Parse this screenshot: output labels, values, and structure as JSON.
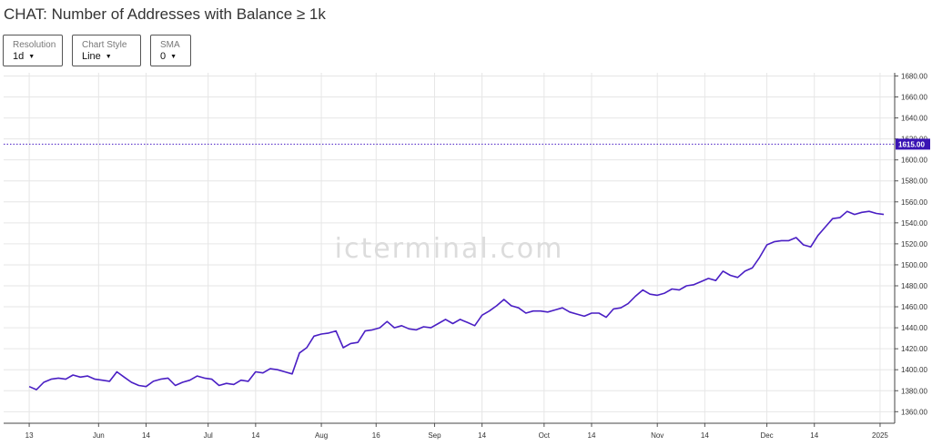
{
  "header": {
    "title": "CHAT: Number of Addresses with Balance ≥ 1k"
  },
  "controls": {
    "resolution": {
      "label": "Resolution",
      "value": "1d"
    },
    "chart_style": {
      "label": "Chart Style",
      "value": "Line"
    },
    "sma": {
      "label": "SMA",
      "value": "0"
    }
  },
  "watermark": "icterminal.com",
  "colors": {
    "line": "#4a1fc4",
    "last_value_bg": "#3a14b4",
    "grid": "#e6e6e6"
  },
  "chart_data": {
    "type": "line",
    "title": "CHAT: Number of Addresses with Balance ≥ 1k",
    "xlabel": "",
    "ylabel": "",
    "ylim": [
      1349,
      1683
    ],
    "xlim": [
      "2024-05-06",
      "2025-01-05"
    ],
    "y_ticks": [
      1360,
      1380,
      1400,
      1420,
      1440,
      1460,
      1480,
      1500,
      1520,
      1540,
      1560,
      1580,
      1600,
      1620,
      1640,
      1660,
      1680
    ],
    "y_tick_labels": [
      "1360.00",
      "1380.00",
      "1400.00",
      "1420.00",
      "1440.00",
      "1460.00",
      "1480.00",
      "1500.00",
      "1520.00",
      "1540.00",
      "1560.00",
      "1580.00",
      "1600.00",
      "1620.00",
      "1640.00",
      "1660.00",
      "1680.00"
    ],
    "x_ticks": [
      {
        "date": "2024-05-13",
        "label": "13"
      },
      {
        "date": "2024-06-01",
        "label": "Jun"
      },
      {
        "date": "2024-06-14",
        "label": "14"
      },
      {
        "date": "2024-07-01",
        "label": "Jul"
      },
      {
        "date": "2024-07-14",
        "label": "14"
      },
      {
        "date": "2024-08-01",
        "label": "Aug"
      },
      {
        "date": "2024-08-16",
        "label": "16"
      },
      {
        "date": "2024-09-01",
        "label": "Sep"
      },
      {
        "date": "2024-09-14",
        "label": "14"
      },
      {
        "date": "2024-10-01",
        "label": "Oct"
      },
      {
        "date": "2024-10-14",
        "label": "14"
      },
      {
        "date": "2024-11-01",
        "label": "Nov"
      },
      {
        "date": "2024-11-14",
        "label": "14"
      },
      {
        "date": "2024-12-01",
        "label": "Dec"
      },
      {
        "date": "2024-12-14",
        "label": "14"
      },
      {
        "date": "2025-01-01",
        "label": "2025"
      }
    ],
    "grid": true,
    "legend": "none",
    "last_value": 1615,
    "last_value_label": "1615.00",
    "series": [
      {
        "points": [
          [
            "2024-05-13",
            1384
          ],
          [
            "2024-05-15",
            1381
          ],
          [
            "2024-05-17",
            1388
          ],
          [
            "2024-05-19",
            1391
          ],
          [
            "2024-05-21",
            1392
          ],
          [
            "2024-05-23",
            1391
          ],
          [
            "2024-05-25",
            1395
          ],
          [
            "2024-05-27",
            1393
          ],
          [
            "2024-05-29",
            1394
          ],
          [
            "2024-05-31",
            1391
          ],
          [
            "2024-06-02",
            1390
          ],
          [
            "2024-06-04",
            1389
          ],
          [
            "2024-06-06",
            1398
          ],
          [
            "2024-06-08",
            1393
          ],
          [
            "2024-06-10",
            1388
          ],
          [
            "2024-06-12",
            1385
          ],
          [
            "2024-06-14",
            1384
          ],
          [
            "2024-06-16",
            1389
          ],
          [
            "2024-06-18",
            1391
          ],
          [
            "2024-06-20",
            1392
          ],
          [
            "2024-06-22",
            1385
          ],
          [
            "2024-06-24",
            1388
          ],
          [
            "2024-06-26",
            1390
          ],
          [
            "2024-06-28",
            1394
          ],
          [
            "2024-06-30",
            1392
          ],
          [
            "2024-07-02",
            1391
          ],
          [
            "2024-07-04",
            1385
          ],
          [
            "2024-07-06",
            1387
          ],
          [
            "2024-07-08",
            1386
          ],
          [
            "2024-07-10",
            1390
          ],
          [
            "2024-07-12",
            1389
          ],
          [
            "2024-07-14",
            1398
          ],
          [
            "2024-07-16",
            1397
          ],
          [
            "2024-07-18",
            1401
          ],
          [
            "2024-07-20",
            1400
          ],
          [
            "2024-07-22",
            1398
          ],
          [
            "2024-07-24",
            1396
          ],
          [
            "2024-07-26",
            1416
          ],
          [
            "2024-07-28",
            1421
          ],
          [
            "2024-07-30",
            1432
          ],
          [
            "2024-08-01",
            1434
          ],
          [
            "2024-08-03",
            1435
          ],
          [
            "2024-08-05",
            1437
          ],
          [
            "2024-08-07",
            1421
          ],
          [
            "2024-08-09",
            1425
          ],
          [
            "2024-08-11",
            1426
          ],
          [
            "2024-08-13",
            1437
          ],
          [
            "2024-08-15",
            1438
          ],
          [
            "2024-08-17",
            1440
          ],
          [
            "2024-08-19",
            1446
          ],
          [
            "2024-08-21",
            1440
          ],
          [
            "2024-08-23",
            1442
          ],
          [
            "2024-08-25",
            1439
          ],
          [
            "2024-08-27",
            1438
          ],
          [
            "2024-08-29",
            1441
          ],
          [
            "2024-08-31",
            1440
          ],
          [
            "2024-09-02",
            1444
          ],
          [
            "2024-09-04",
            1448
          ],
          [
            "2024-09-06",
            1444
          ],
          [
            "2024-09-08",
            1448
          ],
          [
            "2024-09-10",
            1445
          ],
          [
            "2024-09-12",
            1442
          ],
          [
            "2024-09-14",
            1452
          ],
          [
            "2024-09-16",
            1456
          ],
          [
            "2024-09-18",
            1461
          ],
          [
            "2024-09-20",
            1467
          ],
          [
            "2024-09-22",
            1461
          ],
          [
            "2024-09-24",
            1459
          ],
          [
            "2024-09-26",
            1454
          ],
          [
            "2024-09-28",
            1456
          ],
          [
            "2024-09-30",
            1456
          ],
          [
            "2024-10-02",
            1455
          ],
          [
            "2024-10-04",
            1457
          ],
          [
            "2024-10-06",
            1459
          ],
          [
            "2024-10-08",
            1455
          ],
          [
            "2024-10-10",
            1453
          ],
          [
            "2024-10-12",
            1451
          ],
          [
            "2024-10-14",
            1454
          ],
          [
            "2024-10-16",
            1454
          ],
          [
            "2024-10-18",
            1450
          ],
          [
            "2024-10-20",
            1458
          ],
          [
            "2024-10-22",
            1459
          ],
          [
            "2024-10-24",
            1463
          ],
          [
            "2024-10-26",
            1470
          ],
          [
            "2024-10-28",
            1476
          ],
          [
            "2024-10-30",
            1472
          ],
          [
            "2024-11-01",
            1471
          ],
          [
            "2024-11-03",
            1473
          ],
          [
            "2024-11-05",
            1477
          ],
          [
            "2024-11-07",
            1476
          ],
          [
            "2024-11-09",
            1480
          ],
          [
            "2024-11-11",
            1481
          ],
          [
            "2024-11-13",
            1484
          ],
          [
            "2024-11-15",
            1487
          ],
          [
            "2024-11-17",
            1485
          ],
          [
            "2024-11-19",
            1494
          ],
          [
            "2024-11-21",
            1490
          ],
          [
            "2024-11-23",
            1488
          ],
          [
            "2024-11-25",
            1494
          ],
          [
            "2024-11-27",
            1497
          ],
          [
            "2024-11-29",
            1507
          ],
          [
            "2024-12-01",
            1519
          ],
          [
            "2024-12-03",
            1522
          ],
          [
            "2024-12-05",
            1523
          ],
          [
            "2024-12-07",
            1523
          ],
          [
            "2024-12-09",
            1526
          ],
          [
            "2024-12-11",
            1519
          ],
          [
            "2024-12-13",
            1517
          ],
          [
            "2024-12-15",
            1528
          ],
          [
            "2024-12-17",
            1536
          ],
          [
            "2024-12-19",
            1544
          ],
          [
            "2024-12-21",
            1545
          ],
          [
            "2024-12-23",
            1551
          ],
          [
            "2024-12-25",
            1548
          ],
          [
            "2024-12-27",
            1550
          ],
          [
            "2024-12-29",
            1551
          ],
          [
            "2024-12-31",
            1549
          ],
          [
            "2025-01-02",
            1548
          ]
        ]
      }
    ]
  }
}
